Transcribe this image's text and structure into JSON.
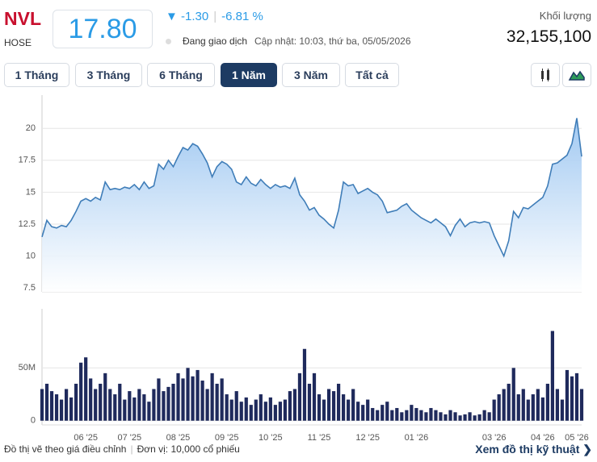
{
  "header": {
    "symbol": "NVL",
    "exchange": "HOSE",
    "price": "17.80",
    "change": "-1.30",
    "change_percent": "-6.81 %",
    "status": "Đang giao dịch",
    "updated": "Cập nhật: 10:03, thứ ba, 05/05/2026",
    "volume_label": "Khối lượng",
    "volume": "32,155,100"
  },
  "tabs": [
    "1 Tháng",
    "3 Tháng",
    "6 Tháng",
    "1 Năm",
    "3 Năm",
    "Tất cả"
  ],
  "footer": {
    "note": "Đồ thị vẽ theo giá điều chỉnh",
    "unit": "Đơn vị: 10,000 cổ phiếu",
    "link": "Xem đồ thị kỹ thuật"
  },
  "chart_data": [
    {
      "type": "area",
      "color": "#3f7db8",
      "fill": "#9cc6f1",
      "grid": true,
      "ylim": [
        7.2,
        22.6
      ],
      "yticks": [
        7.5,
        10,
        12.5,
        15,
        17.5,
        20
      ],
      "values": [
        11.5,
        12.8,
        12.3,
        12.2,
        12.4,
        12.3,
        12.8,
        13.5,
        14.3,
        14.5,
        14.3,
        14.6,
        14.4,
        15.8,
        15.2,
        15.3,
        15.2,
        15.4,
        15.3,
        15.6,
        15.2,
        15.8,
        15.3,
        15.5,
        17.2,
        16.8,
        17.5,
        17.0,
        17.8,
        18.5,
        18.3,
        18.8,
        18.6,
        18.0,
        17.3,
        16.2,
        17.0,
        17.4,
        17.2,
        16.8,
        15.8,
        15.6,
        16.2,
        15.7,
        15.5,
        16.0,
        15.6,
        15.3,
        15.6,
        15.4,
        15.5,
        15.3,
        16.1,
        14.8,
        14.3,
        13.6,
        13.8,
        13.2,
        12.9,
        12.5,
        12.2,
        13.6,
        15.8,
        15.5,
        15.6,
        14.9,
        15.1,
        15.3,
        15.0,
        14.8,
        14.3,
        13.4,
        13.5,
        13.6,
        13.9,
        14.1,
        13.6,
        13.3,
        13.0,
        12.8,
        12.6,
        12.9,
        12.6,
        12.3,
        11.6,
        12.4,
        12.9,
        12.3,
        12.6,
        12.7,
        12.6,
        12.7,
        12.6,
        11.6,
        10.8,
        10.0,
        11.2,
        13.5,
        13.0,
        13.8,
        13.7,
        14.0,
        14.3,
        14.6,
        15.5,
        17.2,
        17.3,
        17.6,
        17.9,
        18.8,
        20.8,
        17.8
      ]
    },
    {
      "type": "bar",
      "color": "#1f2a5c",
      "grid": true,
      "ylim": [
        -4000000,
        106000000
      ],
      "yticks": [
        0,
        {
          "value": 50000000,
          "label": "50M"
        }
      ],
      "categories": [
        null,
        null,
        null,
        null,
        null,
        null,
        null,
        null,
        null,
        "06 '25",
        null,
        null,
        null,
        null,
        null,
        null,
        null,
        null,
        "07 '25",
        null,
        null,
        null,
        null,
        null,
        null,
        null,
        null,
        null,
        "08 '25",
        null,
        null,
        null,
        null,
        null,
        null,
        null,
        null,
        null,
        "09 '25",
        null,
        null,
        null,
        null,
        null,
        null,
        null,
        null,
        "10 '25",
        null,
        null,
        null,
        null,
        null,
        null,
        null,
        null,
        null,
        "11 '25",
        null,
        null,
        null,
        null,
        null,
        null,
        null,
        null,
        null,
        "12 '25",
        null,
        null,
        null,
        null,
        null,
        null,
        null,
        null,
        null,
        "01 '26",
        null,
        null,
        null,
        null,
        null,
        null,
        null,
        null,
        null,
        null,
        null,
        null,
        null,
        null,
        null,
        "03 '26",
        null,
        null,
        null,
        null,
        null,
        null,
        null,
        null,
        null,
        "04 '26",
        null,
        null,
        null,
        null,
        null,
        null,
        "05 '26",
        null
      ],
      "values": [
        30000000,
        35000000,
        28000000,
        25000000,
        20000000,
        30000000,
        22000000,
        35000000,
        55000000,
        60000000,
        40000000,
        30000000,
        35000000,
        45000000,
        30000000,
        25000000,
        35000000,
        20000000,
        28000000,
        22000000,
        30000000,
        25000000,
        18000000,
        30000000,
        40000000,
        28000000,
        32000000,
        35000000,
        45000000,
        40000000,
        50000000,
        42000000,
        48000000,
        38000000,
        30000000,
        45000000,
        35000000,
        40000000,
        25000000,
        20000000,
        28000000,
        18000000,
        22000000,
        15000000,
        20000000,
        25000000,
        18000000,
        22000000,
        15000000,
        18000000,
        20000000,
        28000000,
        30000000,
        45000000,
        68000000,
        35000000,
        45000000,
        25000000,
        20000000,
        30000000,
        28000000,
        35000000,
        25000000,
        20000000,
        30000000,
        18000000,
        15000000,
        20000000,
        12000000,
        10000000,
        15000000,
        18000000,
        10000000,
        12000000,
        8000000,
        10000000,
        15000000,
        12000000,
        10000000,
        8000000,
        12000000,
        10000000,
        8000000,
        6000000,
        10000000,
        8000000,
        5000000,
        6000000,
        8000000,
        5000000,
        6000000,
        10000000,
        8000000,
        20000000,
        25000000,
        30000000,
        35000000,
        50000000,
        25000000,
        30000000,
        20000000,
        25000000,
        30000000,
        22000000,
        35000000,
        85000000,
        30000000,
        20000000,
        48000000,
        42000000,
        45000000,
        30000000
      ]
    }
  ]
}
